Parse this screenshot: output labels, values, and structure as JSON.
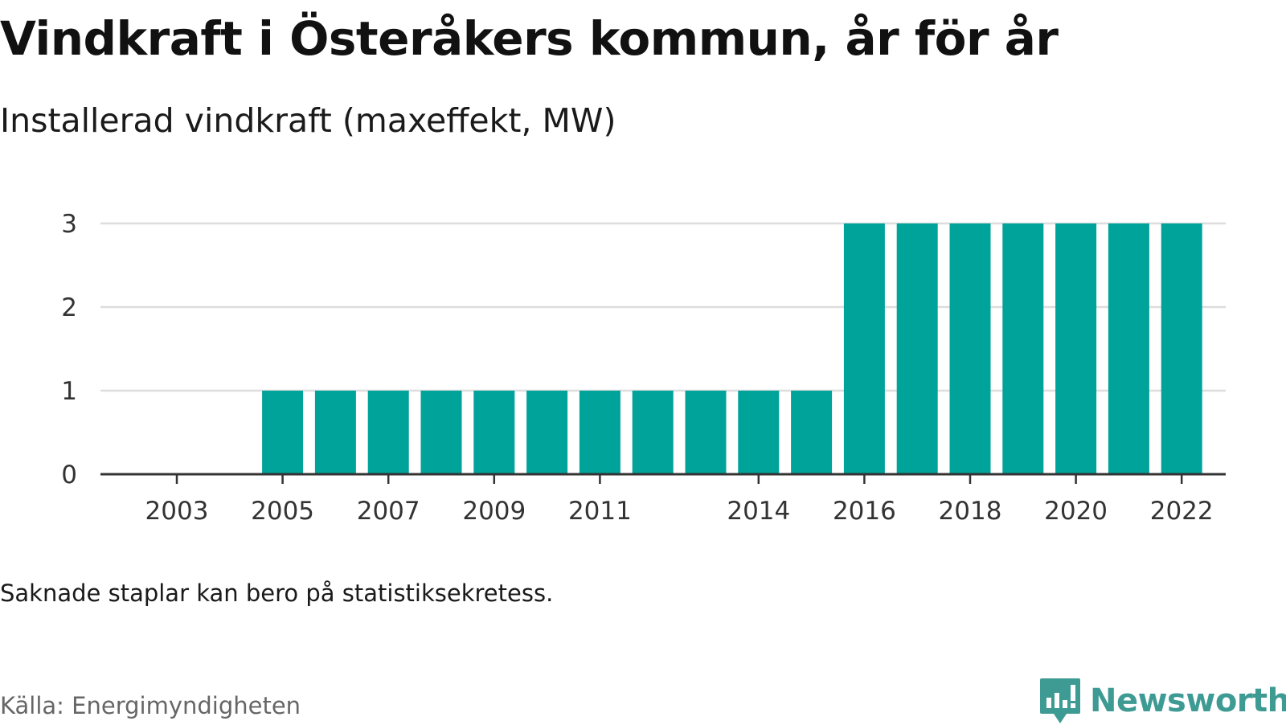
{
  "title": "Vindkraft i Österåkers kommun, år för år",
  "subtitle": "Installerad vindkraft (maxeffekt, MW)",
  "note": "Saknade staplar kan bero på statistiksekretess.",
  "source": "Källa: Energimyndigheten",
  "brand": {
    "name": "Newsworthy",
    "icon": "bar-chart-speech-bubble-icon",
    "color": "#3d9b94"
  },
  "chart_data": {
    "type": "bar",
    "categories": [
      "2003",
      "2004",
      "2005",
      "2006",
      "2007",
      "2008",
      "2009",
      "2010",
      "2011",
      "2012",
      "2013",
      "2014",
      "2015",
      "2016",
      "2017",
      "2018",
      "2019",
      "2020",
      "2021",
      "2022"
    ],
    "values": [
      null,
      null,
      1,
      1,
      1,
      1,
      1,
      1,
      1,
      1,
      1,
      1,
      1,
      3,
      3,
      3,
      3,
      3,
      3,
      3
    ],
    "x_tick_labels": [
      "2003",
      "2005",
      "2007",
      "2009",
      "2011",
      "2014",
      "2016",
      "2018",
      "2020",
      "2022"
    ],
    "y_ticks": [
      0,
      1,
      2,
      3
    ],
    "ylim": [
      0,
      3
    ],
    "title": "Vindkraft i Österåkers kommun, år för år",
    "xlabel": "",
    "ylabel": "",
    "grid": true,
    "bar_color": "#00a39a",
    "grid_color": "#dddddd",
    "axis_color": "#333333"
  }
}
